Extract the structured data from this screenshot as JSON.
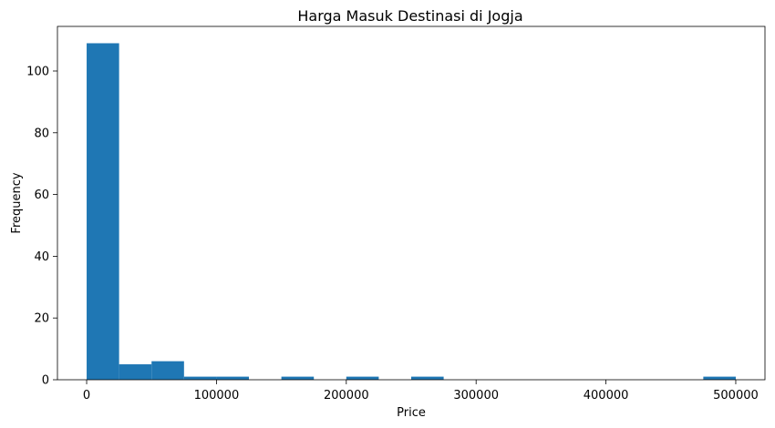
{
  "chart_data": {
    "type": "bar",
    "title": "Harga Masuk Destinasi di Jogja",
    "xlabel": "Price",
    "ylabel": "Frequency",
    "xlim": [
      -22500,
      522500
    ],
    "ylim": [
      0,
      114.45
    ],
    "bins": {
      "start": 0,
      "end": 500000,
      "count": 20,
      "width": 25000
    },
    "values": [
      109,
      5,
      6,
      1,
      1,
      0,
      1,
      0,
      1,
      0,
      1,
      0,
      0,
      0,
      0,
      0,
      0,
      0,
      0,
      1
    ],
    "x_ticks": [
      0,
      100000,
      200000,
      300000,
      400000,
      500000
    ],
    "x_tick_labels": [
      "0",
      "100000",
      "200000",
      "300000",
      "400000",
      "500000"
    ],
    "y_ticks": [
      0,
      20,
      40,
      60,
      80,
      100
    ],
    "y_tick_labels": [
      "0",
      "20",
      "40",
      "60",
      "80",
      "100"
    ],
    "bar_color": "#1f77b4",
    "grid": false,
    "legend": "none"
  }
}
